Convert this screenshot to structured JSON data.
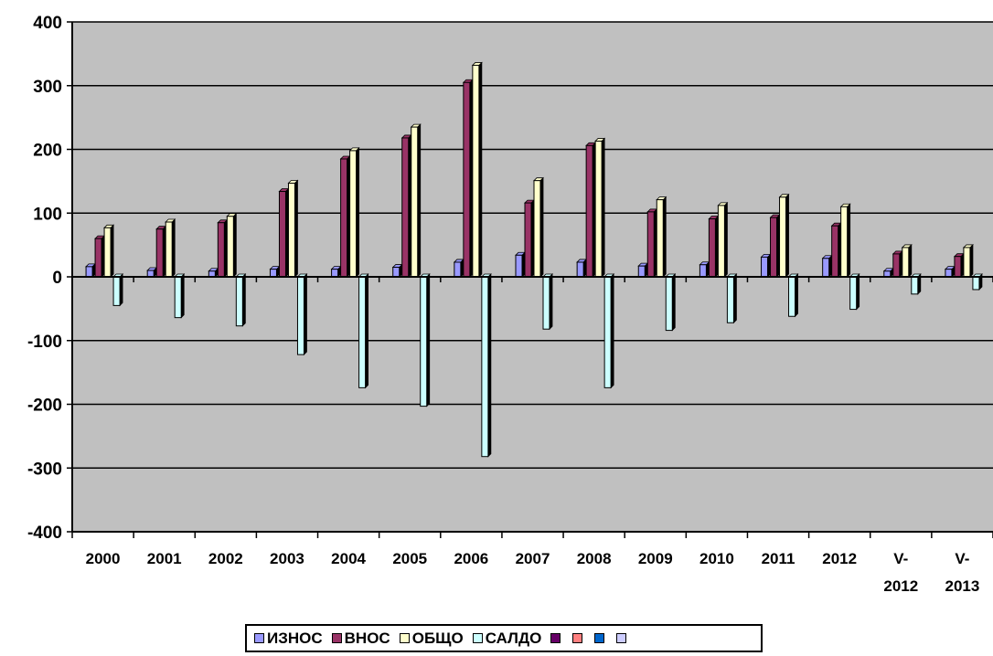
{
  "chart_data": {
    "type": "bar",
    "categories": [
      [
        "2000"
      ],
      [
        "2001"
      ],
      [
        "2002"
      ],
      [
        "2003"
      ],
      [
        "2004"
      ],
      [
        "2005"
      ],
      [
        "2006"
      ],
      [
        "2007"
      ],
      [
        "2008"
      ],
      [
        "2009"
      ],
      [
        "2010"
      ],
      [
        "2011"
      ],
      [
        "2012"
      ],
      [
        "V-",
        "2012"
      ],
      [
        "V-",
        "2013"
      ]
    ],
    "series": [
      {
        "name": "ИЗНОС",
        "color": "#9999FF",
        "values": [
          16,
          10,
          9,
          12,
          12,
          15,
          23,
          34,
          23,
          17,
          19,
          31,
          29,
          9,
          12
        ]
      },
      {
        "name": "ВНОС",
        "color": "#993366",
        "values": [
          60,
          75,
          85,
          134,
          185,
          218,
          305,
          116,
          206,
          102,
          91,
          93,
          80,
          36,
          32
        ]
      },
      {
        "name": "ОБЩО",
        "color": "#FFFFCC",
        "values": [
          77,
          86,
          95,
          147,
          198,
          235,
          332,
          151,
          213,
          121,
          112,
          125,
          110,
          46,
          46
        ]
      },
      {
        "name": "САЛДО",
        "color": "#CCFFFF",
        "values": [
          -45,
          -64,
          -77,
          -122,
          -174,
          -203,
          -282,
          -82,
          -174,
          -84,
          -72,
          -62,
          -51,
          -27,
          -20
        ]
      }
    ],
    "extra_legend": [
      {
        "name": "",
        "color": "#660066"
      },
      {
        "name": "",
        "color": "#FF8080"
      },
      {
        "name": "",
        "color": "#0066CC"
      },
      {
        "name": "",
        "color": "#CCCCFF"
      }
    ],
    "y_ticks": [
      "400",
      "300",
      "200",
      "100",
      "0",
      "-100",
      "-200",
      "-300",
      "-400"
    ],
    "ylim": [
      -400,
      400
    ],
    "grid": true,
    "plot_background": "#C0C0C0",
    "legend_position": "bottom"
  }
}
